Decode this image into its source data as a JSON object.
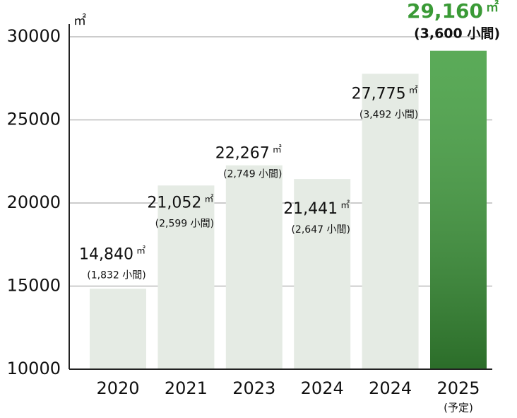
{
  "chart_data": {
    "type": "bar",
    "y_unit": "㎡",
    "categories": [
      "2020",
      "2021",
      "2023",
      "2024",
      "2024",
      "2025"
    ],
    "category_notes": [
      null,
      null,
      null,
      null,
      null,
      "(予定)"
    ],
    "values": [
      14840,
      21052,
      22267,
      21441,
      27775,
      29160
    ],
    "value_labels": [
      "14,840",
      "21,052",
      "22,267",
      "21,441",
      "27,775",
      "29,160"
    ],
    "value_unit": "㎡",
    "booth_labels": [
      "(1,832 小間)",
      "(2,599 小間)",
      "(2,749 小間)",
      "(2,647 小間)",
      "(3,492 小間)",
      "(3,600 小間)"
    ],
    "colors": [
      "#e5ebe4",
      "#e5ebe4",
      "#e5ebe4",
      "#e5ebe4",
      "#e5ebe4",
      "#3e9c3b"
    ],
    "highlight_label_color": "#3a9a36",
    "ylim": [
      10000,
      30000
    ],
    "yticks": [
      10000,
      15000,
      20000,
      25000,
      30000
    ],
    "grid": true
  }
}
